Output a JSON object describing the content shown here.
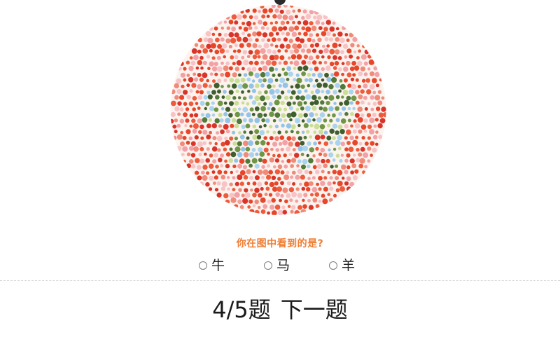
{
  "plate": {
    "image": "ishihara-color-blindness-plate",
    "figure": "cow",
    "colors": {
      "background_dots": [
        "#e8462a",
        "#ee5a3c",
        "#f3a0a6",
        "#f7c3c7",
        "#d9342a",
        "#f08a7a"
      ],
      "figure_dots": [
        "#4f7a3a",
        "#6f9646",
        "#93c4e8",
        "#a9d4ef",
        "#c9de97",
        "#3d5f2f"
      ]
    }
  },
  "quiz": {
    "question": "你在图中看到的是?",
    "options": [
      {
        "label": "牛",
        "selected": false
      },
      {
        "label": "马",
        "selected": false
      },
      {
        "label": "羊",
        "selected": false
      }
    ],
    "progress": "4/5题",
    "next_label": "下一题"
  },
  "colors": {
    "accent": "#f07d32",
    "text": "#1a1a1a"
  }
}
